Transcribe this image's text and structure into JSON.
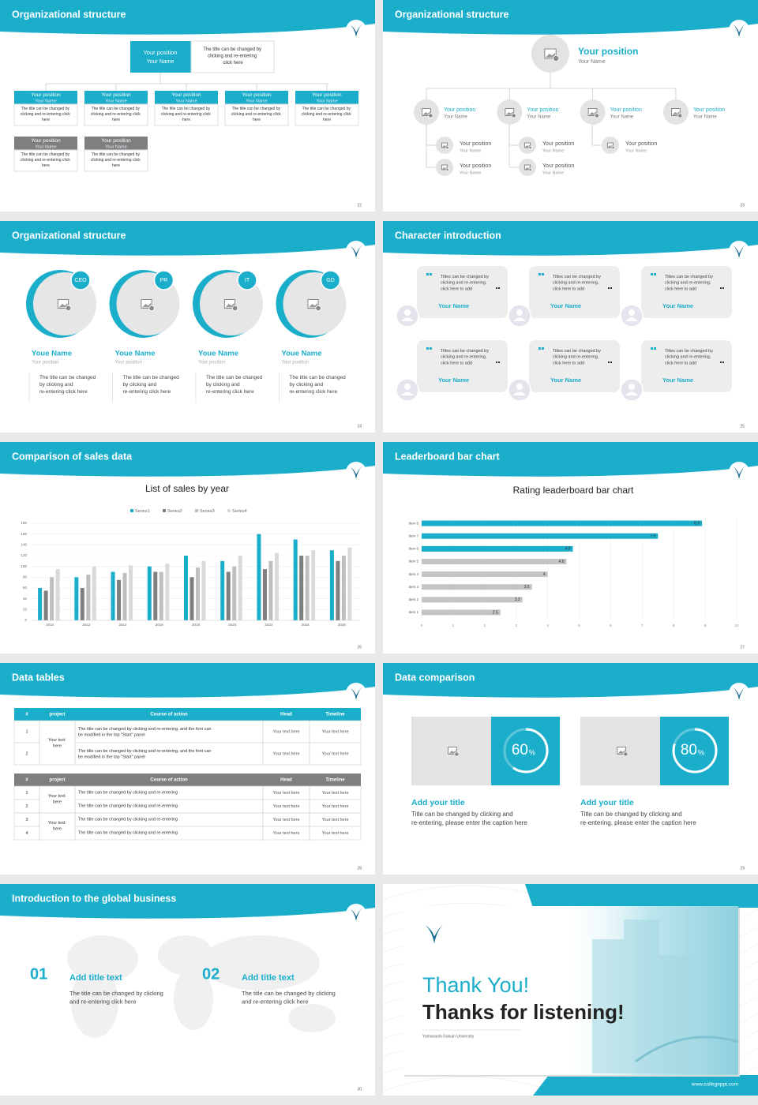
{
  "slides": [
    {
      "title": "Organizational structure",
      "page": "22",
      "top": {
        "position": "Your position",
        "name": "Your Name",
        "desc": "The title can be changed by clicking and re-entering click here"
      },
      "row1": [
        {
          "position": "Your position",
          "name": "Your Name",
          "desc": "The title can be changed by clicking and re-entering click here"
        },
        {
          "position": "Your position",
          "name": "Your Name",
          "desc": "The title can be changed by clicking and re-entering click here"
        },
        {
          "position": "Your position",
          "name": "Your Name",
          "desc": "The title can be changed by clicking and re-entering click here"
        },
        {
          "position": "Your position",
          "name": "Your Name",
          "desc": "The title can be changed by clicking and re-entering click here"
        },
        {
          "position": "Your position",
          "name": "Your Name",
          "desc": "The title can be changed by clicking and re-entering click here"
        }
      ],
      "row2": [
        {
          "position": "Your position",
          "name": "Your Name",
          "desc": "The title can be changed by clicking and re-entering click here"
        },
        {
          "position": "Your position",
          "name": "Your Name",
          "desc": "The title can be changed by clicking and re-entering click here"
        }
      ]
    },
    {
      "title": "Organizational structure",
      "page": "23",
      "top": {
        "position": "Your position",
        "name": "Your Name"
      },
      "level1": [
        {
          "position": "Your position",
          "name": "Your Name"
        },
        {
          "position": "Your position",
          "name": "Your Name"
        },
        {
          "position": "Your position",
          "name": "Your Name"
        },
        {
          "position": "Your position",
          "name": "Your Name"
        }
      ],
      "level2": [
        {
          "position": "Your position",
          "name": "Your Name"
        },
        {
          "position": "Your position",
          "name": "Your Name"
        },
        {
          "position": "Your position",
          "name": "Your Name"
        },
        {
          "position": "Your position",
          "name": "Your Name"
        },
        {
          "position": "Your position",
          "name": "Your Name"
        }
      ]
    },
    {
      "title": "Organizational structure",
      "page": "24",
      "members": [
        {
          "tag": "CEO",
          "name": "Youe Name",
          "position": "Your position",
          "desc": "The title can be changed by clicking and re-entering click here"
        },
        {
          "tag": "PR",
          "name": "Youe Name",
          "position": "Your position",
          "desc": "The title can be changed by clicking and re-entering click here"
        },
        {
          "tag": "IT",
          "name": "Youe Name",
          "position": "Your position",
          "desc": "The title can be changed by clicking and re-entering click here"
        },
        {
          "tag": "GD",
          "name": "Youe Name",
          "position": "Your position",
          "desc": "The title can be changed by clicking and re-entering click here"
        }
      ]
    },
    {
      "title": "Character introduction",
      "page": "25",
      "cards": [
        {
          "quote": "Titles can be changed by clicking and re-entering, click here to add",
          "name": "Your Name"
        },
        {
          "quote": "Titles can be changed by clicking and re-entering, click here to add",
          "name": "Your Name"
        },
        {
          "quote": "Titles can be changed by clicking and re-entering, click here to add",
          "name": "Your Name"
        },
        {
          "quote": "Titles can be changed by clicking and re-entering, click here to add",
          "name": "Your Name"
        },
        {
          "quote": "Titles can be changed by clicking and re-entering, click here to add",
          "name": "Your Name"
        },
        {
          "quote": "Titles can be changed by clicking and re-entering, click here to add",
          "name": "Your Name"
        }
      ]
    },
    {
      "title": "Comparison of sales data",
      "page": "26",
      "chart": {
        "type": "bar",
        "title": "List of sales by year",
        "legend": "top",
        "grid": true,
        "categories": [
          "2010",
          "2012",
          "2014",
          "2016",
          "2018",
          "2020",
          "2022",
          "2024",
          "2026"
        ],
        "series": [
          {
            "name": "Series1",
            "color": "#1aaecb",
            "values": [
              60,
              80,
              90,
              100,
              120,
              110,
              160,
              150,
              130
            ]
          },
          {
            "name": "Series2",
            "color": "#7f7f7f",
            "values": [
              55,
              60,
              75,
              90,
              80,
              90,
              95,
              120,
              110
            ]
          },
          {
            "name": "Series3",
            "color": "#bfbfbf",
            "values": [
              80,
              85,
              88,
              90,
              98,
              100,
              110,
              120,
              120
            ]
          },
          {
            "name": "Series4",
            "color": "#dadada",
            "values": [
              95,
              100,
              102,
              105,
              110,
              120,
              125,
              130,
              135
            ]
          }
        ],
        "ylim": [
          0,
          180
        ],
        "yticks": [
          0,
          20,
          40,
          60,
          80,
          100,
          120,
          140,
          160,
          180
        ]
      }
    },
    {
      "title": "Leaderboard bar chart",
      "page": "27",
      "chart": {
        "type": "bar",
        "orientation": "horizontal",
        "title": "Rating leaderboard bar chart",
        "grid": true,
        "categories": [
          "Item 1",
          "Item 2",
          "Item 3",
          "Item 4",
          "Item 5",
          "Item 6",
          "Item 7",
          "Item 8"
        ],
        "values": [
          2.5,
          3.2,
          3.5,
          4,
          4.6,
          4.8,
          7.5,
          8.9
        ],
        "colors": [
          "#c4c4c4",
          "#c4c4c4",
          "#c4c4c4",
          "#c4c4c4",
          "#c4c4c4",
          "#1aaecb",
          "#1aaecb",
          "#1aaecb"
        ],
        "xlim": [
          0,
          10
        ],
        "xticks": [
          0,
          1,
          2,
          3,
          4,
          5,
          6,
          7,
          8,
          9,
          10
        ]
      }
    },
    {
      "title": "Data tables",
      "page": "28",
      "table1": {
        "header": [
          "#",
          "project",
          "Course of action",
          "Head",
          "Timeline"
        ],
        "project": "Your text here",
        "rows": [
          {
            "num": "1",
            "action": "The title can be changed by clicking and re-entering, and the font can be modified in the top \"Start\" panel",
            "head": "Your text here",
            "timeline": "Your text here"
          },
          {
            "num": "2",
            "action": "The title can be changed by clicking and re-entering, and the font can be modified in the top \"Start\" panel",
            "head": "Your text here",
            "timeline": "Your text here"
          }
        ]
      },
      "table2": {
        "header": [
          "#",
          "project",
          "Course of action",
          "Head",
          "Timeline"
        ],
        "projects": [
          "Your text here",
          "Your text here"
        ],
        "rows": [
          {
            "num": "1",
            "action": "The title can be changed by clicking and re-entering",
            "head": "Your text here",
            "timeline": "Your text here"
          },
          {
            "num": "2",
            "action": "The title can be changed by clicking and re-entering",
            "head": "Your text here",
            "timeline": "Your text here"
          },
          {
            "num": "3",
            "action": "The title can be changed by clicking and re-entering",
            "head": "Your text here",
            "timeline": "Your text here"
          },
          {
            "num": "4",
            "action": "The title can be changed by clicking and re-entering",
            "head": "Your text here",
            "timeline": "Your text here"
          }
        ]
      }
    },
    {
      "title": "Data comparison",
      "page": "29",
      "items": [
        {
          "value": 60,
          "unit": "%",
          "title": "Add your title",
          "desc": "Title can be changed by clicking and re-entering, please enter the caption here"
        },
        {
          "value": 80,
          "unit": "%",
          "title": "Add your title",
          "desc": "Title can be changed by clicking and re-entering, please enter the caption here"
        }
      ]
    },
    {
      "title": "Introduction to the global business",
      "page": "30",
      "items": [
        {
          "num": "01",
          "title": "Add title text",
          "desc": "The title can be changed by clicking and re-entering click here"
        },
        {
          "num": "02",
          "title": "Add title text",
          "desc": "The title can be changed by clicking and re-entering click here"
        }
      ]
    },
    {
      "thanks": "Thank You!",
      "subtitle": "Thanks for listening!",
      "school": "Yamanashi Gakuin University",
      "website": "www.collegeppt.com"
    }
  ]
}
